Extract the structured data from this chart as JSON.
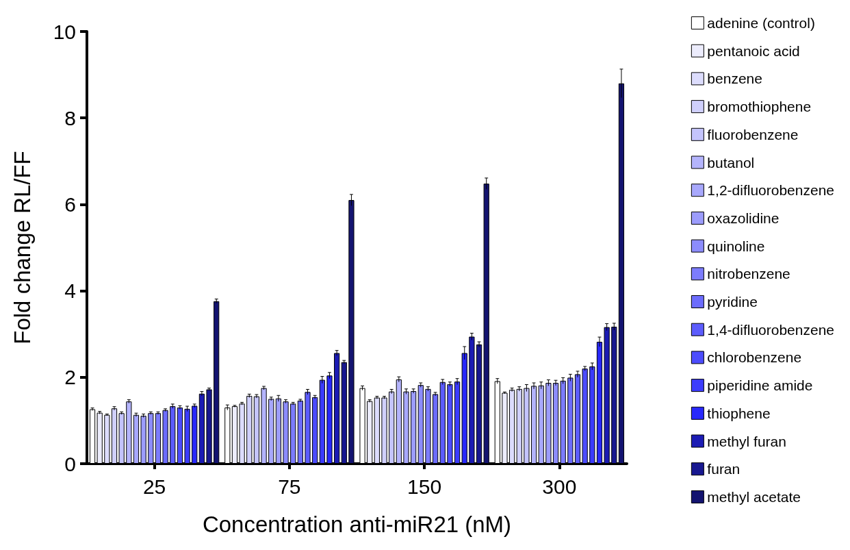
{
  "chart_data": {
    "type": "bar",
    "xlabel": "Concentration anti-miR21 (nM)",
    "ylabel": "Fold change RL/FF",
    "categories": [
      "25",
      "75",
      "150",
      "300"
    ],
    "ylim": [
      0,
      10
    ],
    "yticks": [
      0,
      2,
      4,
      6,
      8,
      10
    ],
    "grid": false,
    "legend": "right",
    "series": [
      {
        "name": "adenine (control)",
        "color": "#ffffff",
        "values": [
          1.26,
          1.3,
          1.75,
          1.91
        ],
        "errors": [
          0.03,
          0.06,
          0.05,
          0.06
        ]
      },
      {
        "name": "pentanoic acid",
        "color": "#ececfc",
        "values": [
          1.18,
          1.33,
          1.45,
          1.64
        ],
        "errors": [
          0.03,
          0.02,
          0.03,
          0.02
        ]
      },
      {
        "name": "benzene",
        "color": "#dcdcfc",
        "values": [
          1.13,
          1.39,
          1.53,
          1.71
        ],
        "errors": [
          0.02,
          0.03,
          0.03,
          0.04
        ]
      },
      {
        "name": "bromothiophene",
        "color": "#d0d0fc",
        "values": [
          1.28,
          1.57,
          1.53,
          1.73
        ],
        "errors": [
          0.04,
          0.04,
          0.03,
          0.05
        ]
      },
      {
        "name": "fluorobenzene",
        "color": "#c4c4fc",
        "values": [
          1.17,
          1.56,
          1.67,
          1.75
        ],
        "errors": [
          0.03,
          0.04,
          0.05,
          0.08
        ]
      },
      {
        "name": "butanol",
        "color": "#b4b4fc",
        "values": [
          1.44,
          1.75,
          1.95,
          1.8
        ],
        "errors": [
          0.04,
          0.04,
          0.06,
          0.07
        ]
      },
      {
        "name": "1,2-difluorobenzene",
        "color": "#a8a8fc",
        "values": [
          1.13,
          1.5,
          1.67,
          1.81
        ],
        "errors": [
          0.04,
          0.04,
          0.06,
          0.08
        ]
      },
      {
        "name": "oxazolidine",
        "color": "#9c9cfc",
        "values": [
          1.11,
          1.51,
          1.68,
          1.87
        ],
        "errors": [
          0.04,
          0.07,
          0.05,
          0.07
        ]
      },
      {
        "name": "quinoline",
        "color": "#8c8cfc",
        "values": [
          1.17,
          1.44,
          1.82,
          1.87
        ],
        "errors": [
          0.03,
          0.04,
          0.05,
          0.06
        ]
      },
      {
        "name": "nitrobenzene",
        "color": "#7c7cfc",
        "values": [
          1.17,
          1.39,
          1.73,
          1.92
        ],
        "errors": [
          0.03,
          0.03,
          0.05,
          0.07
        ]
      },
      {
        "name": "pyridine",
        "color": "#6c6cfc",
        "values": [
          1.24,
          1.46,
          1.61,
          1.99
        ],
        "errors": [
          0.03,
          0.03,
          0.04,
          0.08
        ]
      },
      {
        "name": "1,4-difluorobenzene",
        "color": "#5c5cfc",
        "values": [
          1.33,
          1.66,
          1.89,
          2.07
        ],
        "errors": [
          0.05,
          0.06,
          0.06,
          0.07
        ]
      },
      {
        "name": "chlorobenzene",
        "color": "#4c4cfc",
        "values": [
          1.3,
          1.54,
          1.84,
          2.2
        ],
        "errors": [
          0.04,
          0.04,
          0.05,
          0.05
        ]
      },
      {
        "name": "piperidine amide",
        "color": "#3c3cfc",
        "values": [
          1.27,
          1.94,
          1.9,
          2.25
        ],
        "errors": [
          0.06,
          0.08,
          0.07,
          0.08
        ]
      },
      {
        "name": "thiophene",
        "color": "#2828fc",
        "values": [
          1.34,
          2.04,
          2.56,
          2.82
        ],
        "errors": [
          0.04,
          0.07,
          0.15,
          0.11
        ]
      },
      {
        "name": "methyl furan",
        "color": "#1c1cb4",
        "values": [
          1.62,
          2.56,
          2.94,
          3.16
        ],
        "errors": [
          0.05,
          0.06,
          0.08,
          0.08
        ]
      },
      {
        "name": "furan",
        "color": "#181890",
        "values": [
          1.72,
          2.35,
          2.76,
          3.17
        ],
        "errors": [
          0.03,
          0.04,
          0.06,
          0.08
        ]
      },
      {
        "name": "methyl acetate",
        "color": "#141470",
        "values": [
          3.76,
          6.1,
          6.48,
          8.8
        ],
        "errors": [
          0.05,
          0.13,
          0.13,
          0.33
        ]
      }
    ]
  }
}
